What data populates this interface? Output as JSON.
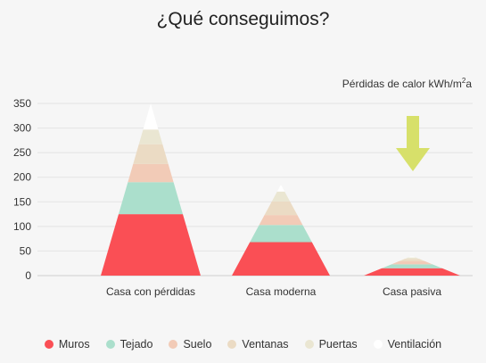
{
  "page": {
    "title": "¿Qué conseguimos?",
    "units_label": "Pérdidas de calor kWh/m",
    "units_sup": "2",
    "units_suffix": "a"
  },
  "chart_data": {
    "type": "area",
    "style": "stacked triangles (pyramid per category)",
    "categories": [
      "Casa con pérdidas",
      "Casa moderna",
      "Casa pasiva"
    ],
    "ylim": [
      0,
      350
    ],
    "yticks": [
      0,
      50,
      100,
      150,
      200,
      250,
      300,
      350
    ],
    "ylabel": "Pérdidas de calor kWh/m2a",
    "series": [
      {
        "name": "Muros",
        "color": "#fa4f55",
        "values": [
          125,
          68,
          15
        ]
      },
      {
        "name": "Tejado",
        "color": "#abdfcc",
        "values": [
          65,
          35,
          8
        ]
      },
      {
        "name": "Suelo",
        "color": "#f2cbb7",
        "values": [
          37,
          20,
          6
        ]
      },
      {
        "name": "Ventanas",
        "color": "#ebdbc4",
        "values": [
          40,
          28,
          5
        ]
      },
      {
        "name": "Puertas",
        "color": "#eae6d2",
        "values": [
          30,
          20,
          3
        ]
      },
      {
        "name": "Ventilación",
        "color": "#ffffff",
        "values": [
          53,
          17,
          2
        ]
      }
    ],
    "annotation": {
      "type": "arrow-down",
      "color": "#d7e06a",
      "category": "Casa pasiva"
    },
    "legend_position": "bottom",
    "grid": true
  }
}
